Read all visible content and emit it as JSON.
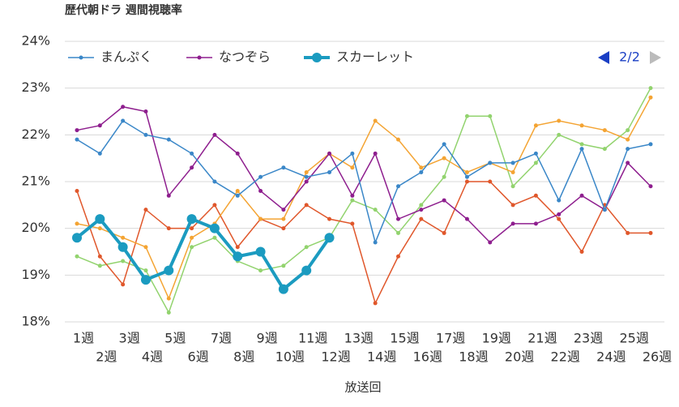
{
  "chart_data": {
    "type": "line",
    "title": "歴代朝ドラ 週間視聴率",
    "x_label": "放送回",
    "legend_page": "2/2",
    "categories": [
      "1週",
      "2週",
      "3週",
      "4週",
      "5週",
      "6週",
      "7週",
      "8週",
      "9週",
      "10週",
      "11週",
      "12週",
      "13週",
      "14週",
      "15週",
      "16週",
      "17週",
      "18週",
      "19週",
      "20週",
      "21週",
      "22週",
      "23週",
      "24週",
      "25週",
      "26週"
    ],
    "ylim": [
      18,
      24
    ],
    "yticks": [
      {
        "value": 18,
        "label": "18%"
      },
      {
        "value": 19,
        "label": "19%"
      },
      {
        "value": 20,
        "label": "20%"
      },
      {
        "value": 21,
        "label": "21%"
      },
      {
        "value": 22,
        "label": "22%"
      },
      {
        "value": 23,
        "label": "23%"
      },
      {
        "value": 24,
        "label": "24%"
      }
    ],
    "grid": true,
    "series": [
      {
        "name": "まんぷく",
        "color": "#3a87c8",
        "values": [
          21.9,
          21.6,
          22.3,
          22.0,
          21.9,
          21.6,
          21.0,
          20.7,
          21.1,
          21.3,
          21.1,
          21.2,
          21.6,
          19.7,
          20.9,
          21.2,
          21.8,
          21.1,
          21.4,
          21.4,
          21.6,
          20.6,
          21.7,
          20.4,
          21.7,
          21.8
        ]
      },
      {
        "name": "なつぞら",
        "color": "#8e1e8e",
        "values": [
          22.1,
          22.2,
          22.6,
          22.5,
          20.7,
          21.3,
          22.0,
          21.6,
          20.8,
          20.4,
          21.0,
          21.6,
          20.7,
          21.6,
          20.2,
          20.4,
          20.6,
          20.2,
          19.7,
          20.1,
          20.1,
          20.3,
          20.7,
          20.4,
          21.4,
          20.9
        ]
      },
      {
        "name": "スカーレット",
        "color": "#1b9bc0",
        "values": [
          19.8,
          20.2,
          19.6,
          18.9,
          19.1,
          20.2,
          20.0,
          19.4,
          19.5,
          18.7,
          19.1,
          19.8,
          null,
          null,
          null,
          null,
          null,
          null,
          null,
          null,
          null,
          null,
          null,
          null,
          null,
          null
        ]
      },
      {
        "color": "#f4a433",
        "values": [
          20.1,
          20.0,
          19.8,
          19.6,
          18.5,
          19.8,
          20.1,
          20.8,
          20.2,
          20.2,
          21.2,
          21.6,
          21.3,
          22.3,
          21.9,
          21.3,
          21.5,
          21.2,
          21.4,
          21.2,
          22.2,
          22.3,
          22.2,
          22.1,
          21.9,
          22.8
        ]
      },
      {
        "color": "#e0572b",
        "values": [
          20.8,
          19.4,
          18.8,
          20.4,
          20.0,
          20.0,
          20.5,
          19.6,
          20.2,
          20.0,
          20.5,
          20.2,
          20.1,
          18.4,
          19.4,
          20.2,
          19.9,
          21.0,
          21.0,
          20.5,
          20.7,
          20.2,
          19.5,
          20.5,
          19.9,
          19.9
        ]
      },
      {
        "color": "#92d36e",
        "values": [
          19.4,
          19.2,
          19.3,
          19.1,
          18.2,
          19.6,
          19.8,
          19.3,
          19.1,
          19.2,
          19.6,
          19.8,
          20.6,
          20.4,
          19.9,
          20.5,
          21.1,
          22.4,
          22.4,
          20.9,
          21.4,
          22.0,
          21.8,
          21.7,
          22.1,
          23.0
        ]
      }
    ]
  }
}
